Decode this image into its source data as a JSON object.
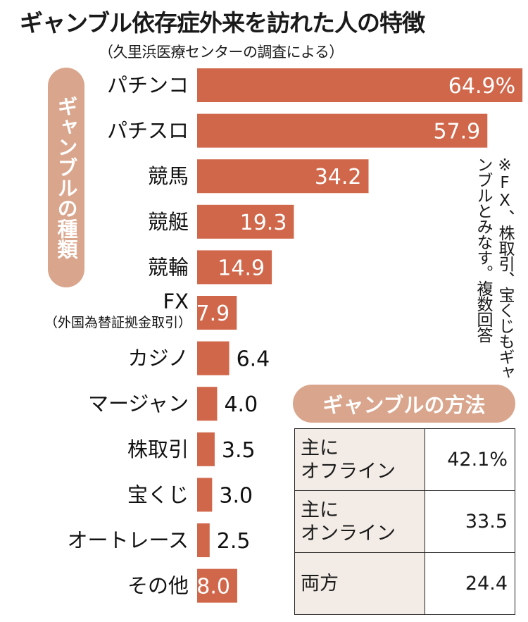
{
  "header": {
    "title": "ギャンブル依存症外来を訪れた人の特徴",
    "subtitle": "（久里浜医療センターの調査による）"
  },
  "side_label": "ギャンブルの種類",
  "note": "※FX、株取引、宝くじもギャンブルとみなす。複数回答",
  "colors": {
    "bar": "#d0674a",
    "label_pill": "#d9a58c",
    "table_label_bg": "#f3ece6"
  },
  "chart_data": {
    "type": "bar",
    "orientation": "horizontal",
    "title": "ギャンブル依存症外来を訪れた人の特徴",
    "subtitle": "（久里浜医療センターの調査による）",
    "ylabel": "ギャンブルの種類",
    "unit": "%",
    "categories": [
      "パチンコ",
      "パチスロ",
      "競馬",
      "競艇",
      "競輪",
      "FX",
      "カジノ",
      "マージャン",
      "株取引",
      "宝くじ",
      "オートレース",
      "その他"
    ],
    "category_sublabels": [
      "",
      "",
      "",
      "",
      "",
      "（外国為替証拠金取引）",
      "",
      "",
      "",
      "",
      "",
      ""
    ],
    "value_labels": [
      "64.9%",
      "57.9",
      "34.2",
      "19.3",
      "14.9",
      "7.9",
      "6.4",
      "4.0",
      "3.5",
      "3.0",
      "2.5",
      "8.0"
    ],
    "values": [
      64.9,
      57.9,
      34.2,
      19.3,
      14.9,
      7.9,
      6.4,
      4.0,
      3.5,
      3.0,
      2.5,
      8.0
    ],
    "xlim": [
      0,
      70
    ]
  },
  "method": {
    "title": "ギャンブルの方法",
    "rows": [
      {
        "label_line1": "主に",
        "label_line2": "オフライン",
        "value": "42.1%"
      },
      {
        "label_line1": "主に",
        "label_line2": "オンライン",
        "value": "33.5"
      },
      {
        "label_line1": "両方",
        "label_line2": "",
        "value": "24.4"
      }
    ]
  }
}
